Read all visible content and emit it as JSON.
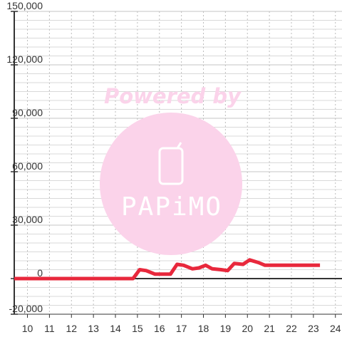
{
  "chart_data": {
    "type": "line",
    "title": "",
    "xlabel": "",
    "ylabel": "",
    "xlim": [
      9.4,
      24.3
    ],
    "ylim": [
      -20000,
      150000
    ],
    "x_ticks": [
      10,
      11,
      12,
      13,
      14,
      15,
      16,
      17,
      18,
      19,
      20,
      21,
      22,
      23,
      24
    ],
    "y_ticks": [
      -20000,
      0,
      30000,
      60000,
      90000,
      120000,
      150000
    ],
    "y_tick_labels": [
      "-20,000",
      "0",
      "30,000",
      "60,000",
      "90,000",
      "120,000",
      "150,000"
    ],
    "grid": true,
    "legend": "none",
    "series": [
      {
        "color": "#e8283c",
        "x": [
          9.4,
          10,
          11,
          12,
          13,
          14,
          14.5,
          14.8,
          15.1,
          15.4,
          15.8,
          16.1,
          16.5,
          16.8,
          17.1,
          17.5,
          17.8,
          18.1,
          18.4,
          18.8,
          19.1,
          19.4,
          19.8,
          20.1,
          20.5,
          20.8,
          21.5,
          22,
          22.5,
          23,
          23.3
        ],
        "values": [
          0,
          0,
          0,
          0,
          0,
          0,
          0,
          0,
          5000,
          4500,
          2500,
          2500,
          2500,
          8000,
          7500,
          5500,
          6000,
          7500,
          5500,
          5000,
          4500,
          8500,
          8000,
          10500,
          9000,
          7500,
          7500,
          7500,
          7500,
          7500,
          7500
        ]
      }
    ]
  },
  "watermark": {
    "text": "Powered by",
    "logo_text": "PAPiMO",
    "color": "#fbd3ea",
    "logo_color": "#ffffff"
  }
}
